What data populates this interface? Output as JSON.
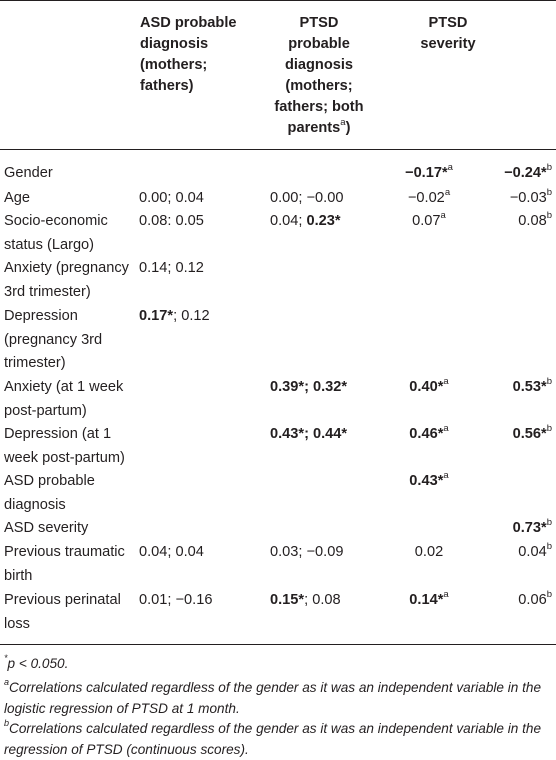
{
  "headers": {
    "asd": "ASD probable diagnosis (mothers; fathers)",
    "ptsd_dx": "PTSD probable diagnosis (mothers; fathers; both parents",
    "ptsd_dx_sup": "a",
    "ptsd_dx_close": ")",
    "ptsd_sev": "PTSD severity"
  },
  "rows": [
    {
      "label": "Gender",
      "cells": [
        {
          "col": "c3",
          "parts": [
            {
              "t": "−0.17*",
              "b": true
            },
            {
              "t": "a",
              "sup": true
            }
          ]
        },
        {
          "col": "c4",
          "parts": [
            {
              "t": "−0.24*",
              "b": true
            },
            {
              "t": "b",
              "sup": true
            }
          ]
        }
      ]
    },
    {
      "label": "Age",
      "cells": [
        {
          "col": "c1",
          "parts": [
            {
              "t": "0.00; 0.04"
            }
          ]
        },
        {
          "col": "c2",
          "parts": [
            {
              "t": "0.00; −0.00"
            }
          ]
        },
        {
          "col": "c3",
          "parts": [
            {
              "t": "−0.02"
            },
            {
              "t": "a",
              "sup": true
            }
          ]
        },
        {
          "col": "c4",
          "parts": [
            {
              "t": "−0.03"
            },
            {
              "t": "b",
              "sup": true
            }
          ]
        }
      ]
    },
    {
      "label": "Socio-economic status (Largo)",
      "cells": [
        {
          "col": "c1",
          "parts": [
            {
              "t": "0.08: 0.05"
            }
          ]
        },
        {
          "col": "c2",
          "parts": [
            {
              "t": "0.04; "
            },
            {
              "t": "0.23*",
              "b": true
            }
          ]
        },
        {
          "col": "c3",
          "parts": [
            {
              "t": "0.07"
            },
            {
              "t": "a",
              "sup": true
            }
          ]
        },
        {
          "col": "c4",
          "parts": [
            {
              "t": "0.08"
            },
            {
              "t": "b",
              "sup": true
            }
          ]
        }
      ]
    },
    {
      "label": "Anxiety (pregnancy 3rd trimester)",
      "cells": [
        {
          "col": "c1",
          "parts": [
            {
              "t": "0.14; 0.12"
            }
          ]
        }
      ]
    },
    {
      "label": "Depression (pregnancy 3rd trimester)",
      "cells": [
        {
          "col": "c1",
          "parts": [
            {
              "t": "0.17*",
              "b": true
            },
            {
              "t": "; 0.12"
            }
          ]
        }
      ]
    },
    {
      "label": "Anxiety (at 1 week post-partum)",
      "cells": [
        {
          "col": "c2",
          "parts": [
            {
              "t": "0.39*; 0.32*",
              "b": true
            }
          ]
        },
        {
          "col": "c3",
          "parts": [
            {
              "t": "0.40*",
              "b": true
            },
            {
              "t": "a",
              "sup": true
            }
          ]
        },
        {
          "col": "c4",
          "parts": [
            {
              "t": "0.53*",
              "b": true
            },
            {
              "t": "b",
              "sup": true
            }
          ]
        }
      ]
    },
    {
      "label": "Depression (at 1 week post-partum)",
      "cells": [
        {
          "col": "c2",
          "parts": [
            {
              "t": "0.43*; 0.44*",
              "b": true
            }
          ]
        },
        {
          "col": "c3",
          "parts": [
            {
              "t": "0.46*",
              "b": true
            },
            {
              "t": "a",
              "sup": true
            }
          ]
        },
        {
          "col": "c4",
          "parts": [
            {
              "t": "0.56*",
              "b": true
            },
            {
              "t": "b",
              "sup": true
            }
          ]
        }
      ]
    },
    {
      "label": "ASD probable diagnosis",
      "cells": [
        {
          "col": "c3",
          "parts": [
            {
              "t": "0.43*",
              "b": true
            },
            {
              "t": "a",
              "sup": true
            }
          ]
        }
      ]
    },
    {
      "label": "ASD severity",
      "cells": [
        {
          "col": "c4",
          "parts": [
            {
              "t": "0.73*",
              "b": true
            },
            {
              "t": "b",
              "sup": true
            }
          ]
        }
      ]
    },
    {
      "label": "Previous traumatic birth",
      "cells": [
        {
          "col": "c1",
          "parts": [
            {
              "t": "0.04; 0.04"
            }
          ]
        },
        {
          "col": "c2",
          "parts": [
            {
              "t": "0.03; −0.09"
            }
          ]
        },
        {
          "col": "c3",
          "parts": [
            {
              "t": "0.02"
            }
          ]
        },
        {
          "col": "c4",
          "parts": [
            {
              "t": "0.04"
            },
            {
              "t": "b",
              "sup": true
            }
          ]
        }
      ]
    },
    {
      "label": "Previous perinatal loss",
      "cells": [
        {
          "col": "c1",
          "parts": [
            {
              "t": "0.01; −0.16"
            }
          ]
        },
        {
          "col": "c2",
          "parts": [
            {
              "t": "0.15*",
              "b": true
            },
            {
              "t": "; 0.08"
            }
          ]
        },
        {
          "col": "c3",
          "parts": [
            {
              "t": "0.14*",
              "b": true
            },
            {
              "t": "a",
              "sup": true
            }
          ]
        },
        {
          "col": "c4",
          "parts": [
            {
              "t": "0.06"
            },
            {
              "t": "b",
              "sup": true
            }
          ]
        }
      ]
    }
  ],
  "footnotes": [
    {
      "sup": "*",
      "text": "p < 0.050."
    },
    {
      "sup": "a",
      "text": "Correlations calculated regardless of the gender as it was an independent variable in the logistic regression of PTSD at 1 month."
    },
    {
      "sup": "b",
      "text": "Correlations calculated regardless of the gender as it was an independent variable in the regression of PTSD (continuous scores)."
    }
  ]
}
